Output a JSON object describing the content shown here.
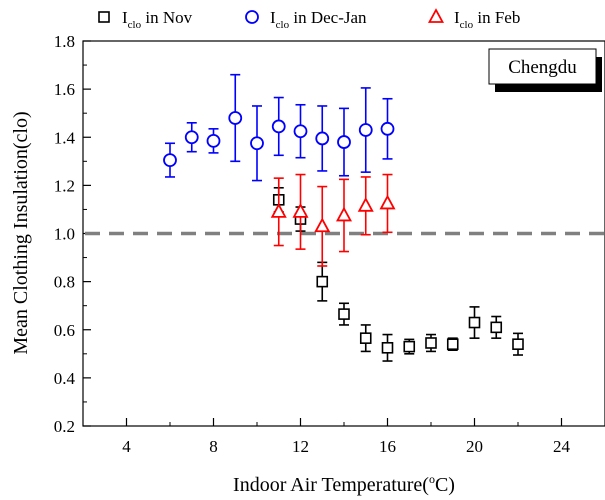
{
  "chart_data": {
    "type": "scatter",
    "xlabel_main": "Indoor Air Temperature(",
    "xlabel_sup": "o",
    "xlabel_tail": "C)",
    "ylabel": "Mean Clothing Insulation(clo)",
    "xlim": [
      2,
      26
    ],
    "ylim": [
      0.2,
      1.8
    ],
    "xticks": [
      4,
      8,
      12,
      16,
      20,
      24
    ],
    "yticks": [
      0.2,
      0.4,
      0.6,
      0.8,
      1.0,
      1.2,
      1.4,
      1.6,
      1.8
    ],
    "reference_line": {
      "y": 1.0,
      "style": "dashed",
      "color": "#808080"
    },
    "annotation": "Chengdu",
    "legend_placement": "top",
    "series": [
      {
        "name_main": "I",
        "name_sub": "clo",
        "name_tail": " in Nov",
        "marker": "square",
        "color": "#000000",
        "points": [
          {
            "x": 11,
            "y": 1.14,
            "err": 0.05
          },
          {
            "x": 12,
            "y": 1.06,
            "err": 0.05
          },
          {
            "x": 13,
            "y": 0.8,
            "err": 0.08
          },
          {
            "x": 14,
            "y": 0.665,
            "err": 0.045
          },
          {
            "x": 15,
            "y": 0.565,
            "err": 0.055
          },
          {
            "x": 16,
            "y": 0.525,
            "err": 0.055
          },
          {
            "x": 17,
            "y": 0.53,
            "err": 0.03
          },
          {
            "x": 18,
            "y": 0.545,
            "err": 0.035
          },
          {
            "x": 19,
            "y": 0.54,
            "err": 0.025
          },
          {
            "x": 20,
            "y": 0.63,
            "err": 0.065
          },
          {
            "x": 21,
            "y": 0.61,
            "err": 0.045
          },
          {
            "x": 22,
            "y": 0.54,
            "err": 0.045
          }
        ]
      },
      {
        "name_main": "I",
        "name_sub": "clo",
        "name_tail": " in Dec-Jan",
        "marker": "circle",
        "color": "#0000FF",
        "points": [
          {
            "x": 6,
            "y": 1.305,
            "err": 0.07
          },
          {
            "x": 7,
            "y": 1.4,
            "err": 0.06
          },
          {
            "x": 8,
            "y": 1.385,
            "err": 0.05
          },
          {
            "x": 9,
            "y": 1.48,
            "err": 0.18
          },
          {
            "x": 10,
            "y": 1.375,
            "err": 0.155
          },
          {
            "x": 11,
            "y": 1.445,
            "err": 0.12
          },
          {
            "x": 12,
            "y": 1.425,
            "err": 0.11
          },
          {
            "x": 13,
            "y": 1.395,
            "err": 0.135
          },
          {
            "x": 14,
            "y": 1.38,
            "err": 0.14
          },
          {
            "x": 15,
            "y": 1.43,
            "err": 0.175
          },
          {
            "x": 16,
            "y": 1.435,
            "err": 0.125
          }
        ]
      },
      {
        "name_main": "I",
        "name_sub": "clo",
        "name_tail": " in Feb",
        "marker": "triangle",
        "color": "#FF0000",
        "points": [
          {
            "x": 11,
            "y": 1.09,
            "err": 0.14
          },
          {
            "x": 12,
            "y": 1.09,
            "err": 0.155
          },
          {
            "x": 13,
            "y": 1.03,
            "err": 0.165
          },
          {
            "x": 14,
            "y": 1.075,
            "err": 0.15
          },
          {
            "x": 15,
            "y": 1.115,
            "err": 0.12
          },
          {
            "x": 16,
            "y": 1.125,
            "err": 0.12
          }
        ]
      }
    ]
  }
}
